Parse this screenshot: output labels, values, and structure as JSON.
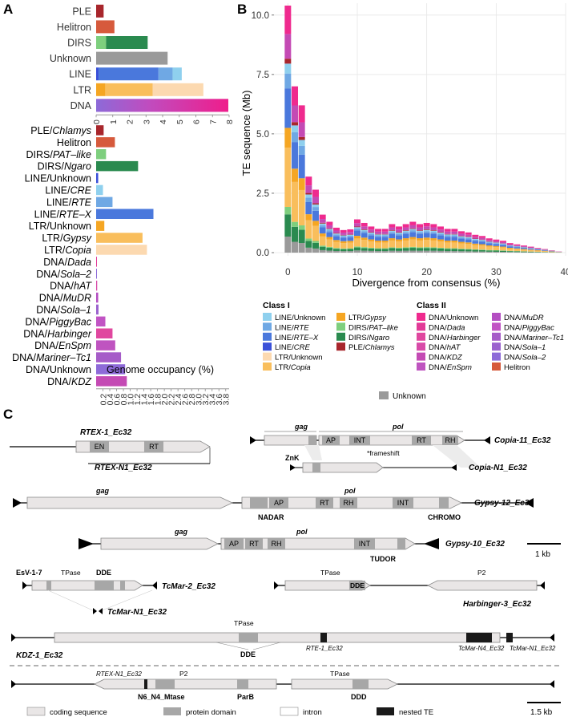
{
  "panel_labels": {
    "a": "A",
    "b": "B",
    "c": "C"
  },
  "colors": {
    "line_unknown": "#8fd0ee",
    "line_rte": "#6fa8e4",
    "line_rtex": "#4a78dc",
    "line_cre": "#3a50d8",
    "ltr_unknown": "#fcd9b0",
    "ltr_copia": "#f9be5c",
    "ltr_gypsy": "#f5a623",
    "dirs_pat": "#7ecf7e",
    "dirs_ngaro": "#2a8a4f",
    "ple": "#a8262c",
    "helitron": "#d65a3c",
    "dna_unknown": "#ef2a8e",
    "dna_dada": "#e23a97",
    "dna_harbinger": "#e0479f",
    "dna_hat": "#d84aa8",
    "dna_kdz": "#c44ab4",
    "dna_enspm": "#bf54c0",
    "dna_mudr": "#b44ec2",
    "dna_piggybac": "#c154c4",
    "dna_mariner": "#a65cc8",
    "dna_sola1": "#9b62ce",
    "dna_sola2": "#8d6ad8",
    "unknown": "#9a9a9a",
    "coding": "#e9e6e6",
    "domain": "#a7a7a7",
    "nested": "#1a1a1a"
  },
  "chart_data": [
    {
      "type": "bar",
      "orientation": "horizontal",
      "stacked": true,
      "categories": [
        "PLE",
        "Helitron",
        "DIRS",
        "Unknown",
        "LINE",
        "LTR",
        "DNA"
      ],
      "series": [
        {
          "name": "PLE",
          "color": "ple",
          "values": [
            0.45,
            0,
            0,
            0,
            0,
            0,
            0
          ]
        },
        {
          "name": "Helitron",
          "color": "helitron",
          "values": [
            0,
            1.1,
            0,
            0,
            0,
            0,
            0
          ]
        },
        {
          "name": "DIRS/PAT-like",
          "color": "dirs_pat",
          "values": [
            0,
            0,
            0.6,
            0,
            0,
            0,
            0
          ]
        },
        {
          "name": "DIRS/Ngaro",
          "color": "dirs_ngaro",
          "values": [
            0,
            0,
            2.5,
            0,
            0,
            0,
            0
          ]
        },
        {
          "name": "Unknown",
          "color": "unknown",
          "values": [
            0,
            0,
            0,
            4.3,
            0,
            0,
            0
          ]
        },
        {
          "name": "LINE/CRE",
          "color": "line_cre",
          "values": [
            0,
            0,
            0,
            0,
            0.15,
            0,
            0
          ]
        },
        {
          "name": "LINE/RTE-X",
          "color": "line_rtex",
          "values": [
            0,
            0,
            0,
            0,
            3.6,
            0,
            0
          ]
        },
        {
          "name": "LINE/RTE",
          "color": "line_rte",
          "values": [
            0,
            0,
            0,
            0,
            0.85,
            0,
            0
          ]
        },
        {
          "name": "LINE/Unknown",
          "color": "line_unknown",
          "values": [
            0,
            0,
            0,
            0,
            0.55,
            0,
            0
          ]
        },
        {
          "name": "LTR/Unknown",
          "color": "ltr_gypsy",
          "values": [
            0,
            0,
            0,
            0,
            0,
            0.55,
            0
          ]
        },
        {
          "name": "LTR/Gypsy",
          "color": "ltr_copia",
          "values": [
            0,
            0,
            0,
            0,
            0,
            2.85,
            0
          ]
        },
        {
          "name": "LTR/Copia",
          "color": "ltr_unknown",
          "values": [
            0,
            0,
            0,
            0,
            0,
            3.05,
            0
          ]
        },
        {
          "name": "DNA",
          "color": "dna_mudr",
          "values": [
            0,
            0,
            0,
            0,
            0,
            0,
            7.95
          ]
        }
      ],
      "xlim": [
        0,
        8
      ],
      "xticks": [
        "0",
        "1",
        "2",
        "3",
        "4",
        "5",
        "6",
        "7",
        "8"
      ]
    },
    {
      "type": "bar",
      "orientation": "horizontal",
      "categories": [
        {
          "pre": "PLE/",
          "it": "Chlamys",
          "post": ""
        },
        {
          "pre": "Helitron",
          "it": "",
          "post": ""
        },
        {
          "pre": "DIRS/",
          "it": "PAT–like",
          "post": ""
        },
        {
          "pre": "DIRS/",
          "it": "Ngaro",
          "post": ""
        },
        {
          "pre": "LINE/Unknown",
          "it": "",
          "post": ""
        },
        {
          "pre": "LINE/",
          "it": "CRE",
          "post": ""
        },
        {
          "pre": "LINE/",
          "it": "RTE",
          "post": ""
        },
        {
          "pre": "LINE/",
          "it": "RTE–X",
          "post": ""
        },
        {
          "pre": "LTR/Unknown",
          "it": "",
          "post": ""
        },
        {
          "pre": "LTR/",
          "it": "Gypsy",
          "post": ""
        },
        {
          "pre": "LTR/",
          "it": "Copia",
          "post": ""
        },
        {
          "pre": "DNA/",
          "it": "Dada",
          "post": ""
        },
        {
          "pre": "DNA/",
          "it": "Sola–2",
          "post": ""
        },
        {
          "pre": "DNA/",
          "it": "hAT",
          "post": ""
        },
        {
          "pre": "DNA/",
          "it": "MuDR",
          "post": ""
        },
        {
          "pre": "DNA/",
          "it": "Sola–1",
          "post": ""
        },
        {
          "pre": "DNA/",
          "it": "PiggyBac",
          "post": ""
        },
        {
          "pre": "DNA/",
          "it": "Harbinger",
          "post": ""
        },
        {
          "pre": "DNA/",
          "it": "EnSpm",
          "post": ""
        },
        {
          "pre": "DNA/",
          "it": "Mariner–Tc1",
          "post": ""
        },
        {
          "pre": "DNA/Unknown",
          "it": "",
          "post": ""
        },
        {
          "pre": "DNA/",
          "it": "KDZ",
          "post": ""
        }
      ],
      "values": [
        0.22,
        0.55,
        0.29,
        1.23,
        0.06,
        0.2,
        0.48,
        1.68,
        0.24,
        1.36,
        1.49,
        0.01,
        0.02,
        0.03,
        0.06,
        0.07,
        0.27,
        0.48,
        0.56,
        0.73,
        0.85,
        0.9
      ],
      "colors": [
        "ple",
        "helitron",
        "dirs_pat",
        "dirs_ngaro",
        "line_cre",
        "line_unknown",
        "line_rte",
        "line_rtex",
        "ltr_gypsy",
        "ltr_copia",
        "ltr_unknown",
        "dna_dada",
        "dna_sola2",
        "dna_hat",
        "dna_mudr",
        "dna_sola1",
        "dna_piggybac",
        "dna_harbinger",
        "dna_enspm",
        "dna_mariner",
        "dna_sola2",
        "dna_kdz"
      ],
      "xlim": [
        0,
        1.9
      ],
      "xticks": [
        "0",
        "0.2",
        "0.4",
        "0.6",
        "0.8",
        "1.0",
        "1.2",
        "1.4",
        "1.6",
        "1.8",
        "2.0",
        "2.2",
        "2.4",
        "2.6",
        "2.8",
        "3.0",
        "3.2",
        "3.4",
        "3.6",
        "3.8"
      ],
      "xlabel": "Genome occupancy (%)"
    },
    {
      "type": "bar",
      "stacked": true,
      "bin_width": 1,
      "x": [
        0,
        1,
        2,
        3,
        4,
        5,
        6,
        7,
        8,
        9,
        10,
        11,
        12,
        13,
        14,
        15,
        16,
        17,
        18,
        19,
        20,
        21,
        22,
        23,
        24,
        25,
        26,
        27,
        28,
        29,
        30,
        31,
        32,
        33,
        34,
        35,
        36,
        37,
        38,
        39
      ],
      "totals": [
        10.4,
        7.0,
        6.2,
        3.2,
        2.65,
        1.6,
        1.3,
        1.05,
        0.95,
        0.98,
        1.4,
        1.25,
        1.1,
        1.0,
        1.0,
        1.2,
        1.1,
        1.2,
        1.3,
        1.2,
        1.25,
        1.2,
        1.1,
        1.0,
        1.0,
        0.9,
        0.85,
        0.75,
        0.7,
        0.6,
        0.55,
        0.5,
        0.4,
        0.35,
        0.3,
        0.25,
        0.2,
        0.15,
        0.1,
        0.05
      ],
      "segments": [
        {
          "name": "Unknown",
          "color": "unknown",
          "fraction": 0.065
        },
        {
          "name": "DIRS/Ngaro",
          "color": "dirs_ngaro",
          "fraction": 0.09
        },
        {
          "name": "DIRS/PAT-like",
          "color": "dirs_pat",
          "fraction": 0.03
        },
        {
          "name": "LTR/Copia",
          "color": "ltr_copia",
          "fraction": 0.24
        },
        {
          "name": "LTR/Gypsy",
          "color": "ltr_gypsy",
          "fraction": 0.08
        },
        {
          "name": "LINE/RTE-X",
          "color": "line_rtex",
          "fraction": 0.16
        },
        {
          "name": "LINE/RTE",
          "color": "line_rte",
          "fraction": 0.06
        },
        {
          "name": "LINE/Unknown",
          "color": "line_unknown",
          "fraction": 0.04
        },
        {
          "name": "PLE/Chlamys",
          "color": "ple",
          "fraction": 0.02
        },
        {
          "name": "DNA/KDZ",
          "color": "dna_kdz",
          "fraction": 0.1
        },
        {
          "name": "DNA/Unknown",
          "color": "dna_unknown",
          "fraction": 0.115
        }
      ],
      "ylim": [
        0,
        10.5
      ],
      "xlim": [
        -2,
        40
      ],
      "yticks": [
        "0.0",
        "2.5",
        "5.0",
        "7.5",
        "10.0"
      ],
      "ytick_values": [
        0,
        2.5,
        5,
        7.5,
        10
      ],
      "xticks": [
        "0",
        "10",
        "20",
        "30",
        "40"
      ],
      "xtick_values": [
        0,
        10,
        20,
        30,
        40
      ],
      "xlabel": "Divergence from consensus (%)",
      "ylabel": "TE sequence (Mb)"
    }
  ],
  "legend": {
    "class1_title": "Class I",
    "class2_title": "Class II",
    "class1": [
      {
        "pre": "LINE/Unknown",
        "it": "",
        "color": "line_unknown"
      },
      {
        "pre": "LINE/",
        "it": "RTE",
        "color": "line_rte"
      },
      {
        "pre": "LINE/",
        "it": "RTE–X",
        "color": "line_rtex"
      },
      {
        "pre": "LINE/",
        "it": "CRE",
        "color": "line_cre"
      },
      {
        "pre": "LTR/Unknown",
        "it": "",
        "color": "ltr_unknown"
      },
      {
        "pre": "LTR/",
        "it": "Copia",
        "color": "ltr_copia"
      },
      {
        "pre": "LTR/",
        "it": "Gypsy",
        "color": "ltr_gypsy"
      },
      {
        "pre": "DIRS/",
        "it": "PAT–like",
        "color": "dirs_pat"
      },
      {
        "pre": "DIRS/",
        "it": "Ngaro",
        "color": "dirs_ngaro"
      },
      {
        "pre": "PLE/",
        "it": "Chlamys",
        "color": "ple"
      }
    ],
    "class2": [
      {
        "pre": "DNA/Unknown",
        "it": "",
        "color": "dna_unknown"
      },
      {
        "pre": "DNA/",
        "it": "Dada",
        "color": "dna_dada"
      },
      {
        "pre": "DNA/",
        "it": "Harbinger",
        "color": "dna_harbinger"
      },
      {
        "pre": "DNA/",
        "it": "hAT",
        "color": "dna_hat"
      },
      {
        "pre": "DNA/",
        "it": "KDZ",
        "color": "dna_kdz"
      },
      {
        "pre": "DNA/",
        "it": "EnSpm",
        "color": "dna_enspm"
      },
      {
        "pre": "DNA/",
        "it": "MuDR",
        "color": "dna_mudr"
      },
      {
        "pre": "DNA/",
        "it": "PiggyBac",
        "color": "dna_piggybac"
      },
      {
        "pre": "DNA/",
        "it": "Mariner–Tc1",
        "color": "dna_mariner"
      },
      {
        "pre": "DNA/",
        "it": "Sola–1",
        "color": "dna_sola1"
      },
      {
        "pre": "DNA/",
        "it": "Sola–2",
        "color": "dna_sola2"
      },
      {
        "pre": "Helitron",
        "it": "",
        "color": "helitron"
      }
    ],
    "unknown": "Unknown"
  },
  "elements": {
    "rtex1_name": "RTEX-1_Ec32",
    "rtexn1_name": "RTEX-N1_Ec32",
    "copia11_name": "Copia-11_Ec32",
    "copian1_name": "Copia-N1_Ec32",
    "gypsy12_name": "Gypsy-12_Ec32",
    "gypsy10_name": "Gypsy-10_Ec32",
    "tcmar2_name": "TcMar-2_Ec32",
    "tcmarn1_name": "TcMar-N1_Ec32",
    "harbinger3_name": "Harbinger-3_Ec32",
    "kdz1_name": "KDZ-1_Ec32",
    "rte1_nested": "RTE-1_Ec32",
    "tcmarn4_nested": "TcMar-N4_Ec32",
    "tcmarn1_nested": "TcMar-N1_Ec32",
    "rtexn1_nested": "RTEX-N1_Ec32",
    "en": "EN",
    "rt": "RT",
    "ap": "AP",
    "int": "INT",
    "rh": "RH",
    "gag": "gag",
    "pol": "pol",
    "znk": "ZnK",
    "frameshift": "*frameshift",
    "nadar": "NADAR",
    "chromo": "CHROMO",
    "tudor": "TUDOR",
    "esv": "EsV-1-7",
    "tpase": "TPase",
    "dde": "DDE",
    "p2": "P2",
    "n6n4": "N6_N4_Mtase",
    "parb": "ParB",
    "ddd": "DDD",
    "scale1": "1 kb",
    "scale2": "1.5 kb"
  },
  "key": {
    "coding": "coding sequence",
    "domain": "protein domain",
    "intron": "intron",
    "nested": "nested TE"
  }
}
